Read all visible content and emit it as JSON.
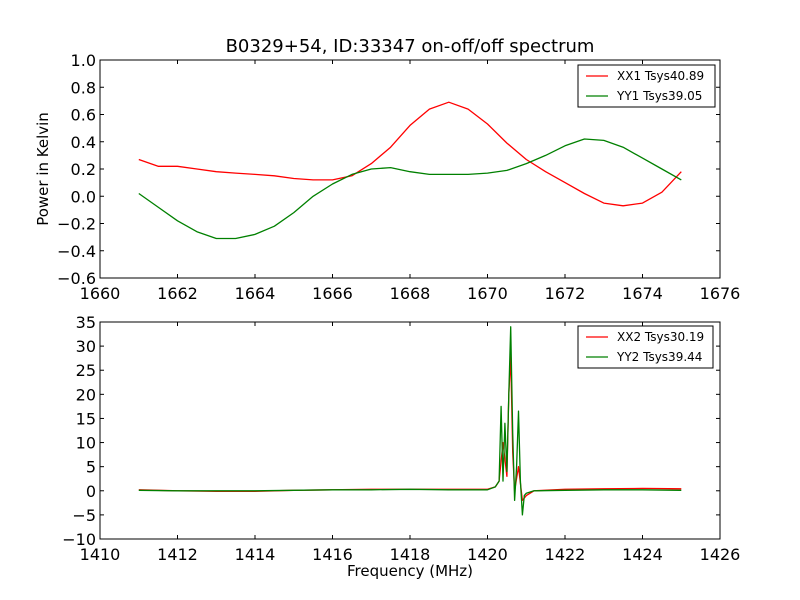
{
  "chart_data": [
    {
      "type": "line",
      "title": "B0329+54, ID:33347 on-off/off spectrum",
      "xlabel": "",
      "ylabel": "Power in Kelvin",
      "xlim": [
        1660,
        1676
      ],
      "ylim": [
        -0.6,
        1.0
      ],
      "xticks": [
        "1660",
        "1662",
        "1664",
        "1666",
        "1668",
        "1670",
        "1672",
        "1674",
        "1676"
      ],
      "yticks": [
        "−0.6",
        "−0.4",
        "−0.2",
        "0.0",
        "0.2",
        "0.4",
        "0.6",
        "0.8",
        "1.0"
      ],
      "grid": false,
      "legend_position": "top-right",
      "series": [
        {
          "name": "XX1 Tsys40.89",
          "color": "#ff0000",
          "x": [
            1661.0,
            1661.5,
            1662.0,
            1662.5,
            1663.0,
            1663.5,
            1664.0,
            1664.5,
            1665.0,
            1665.5,
            1666.0,
            1666.5,
            1667.0,
            1667.5,
            1668.0,
            1668.5,
            1669.0,
            1669.5,
            1670.0,
            1670.5,
            1671.0,
            1671.5,
            1672.0,
            1672.5,
            1673.0,
            1673.5,
            1674.0,
            1674.5,
            1675.0
          ],
          "y": [
            0.27,
            0.22,
            0.22,
            0.2,
            0.18,
            0.17,
            0.16,
            0.15,
            0.13,
            0.12,
            0.12,
            0.15,
            0.24,
            0.36,
            0.52,
            0.64,
            0.69,
            0.64,
            0.53,
            0.39,
            0.27,
            0.18,
            0.1,
            0.02,
            -0.05,
            -0.07,
            -0.05,
            0.03,
            0.18
          ]
        },
        {
          "name": "YY1 Tsys39.05",
          "color": "#008000",
          "x": [
            1661.0,
            1661.5,
            1662.0,
            1662.5,
            1663.0,
            1663.5,
            1664.0,
            1664.5,
            1665.0,
            1665.5,
            1666.0,
            1666.5,
            1667.0,
            1667.5,
            1668.0,
            1668.5,
            1669.0,
            1669.5,
            1670.0,
            1670.5,
            1671.0,
            1671.5,
            1672.0,
            1672.5,
            1673.0,
            1673.5,
            1674.0,
            1674.5,
            1675.0
          ],
          "y": [
            0.02,
            -0.08,
            -0.18,
            -0.26,
            -0.31,
            -0.31,
            -0.28,
            -0.22,
            -0.12,
            0.0,
            0.09,
            0.16,
            0.2,
            0.21,
            0.18,
            0.16,
            0.16,
            0.16,
            0.17,
            0.19,
            0.24,
            0.3,
            0.37,
            0.42,
            0.41,
            0.36,
            0.28,
            0.2,
            0.12
          ]
        }
      ]
    },
    {
      "type": "line",
      "title": "",
      "xlabel": "Frequency (MHz)",
      "ylabel": "",
      "xlim": [
        1410,
        1426
      ],
      "ylim": [
        -10,
        35
      ],
      "xticks": [
        "1410",
        "1412",
        "1414",
        "1416",
        "1418",
        "1420",
        "1422",
        "1424",
        "1426"
      ],
      "yticks": [
        "−10",
        "−5",
        "0",
        "5",
        "10",
        "15",
        "20",
        "25",
        "30",
        "35"
      ],
      "grid": false,
      "legend_position": "top-right",
      "series": [
        {
          "name": "XX2 Tsys30.19",
          "color": "#ff0000",
          "x": [
            1411.0,
            1412.0,
            1413.0,
            1414.0,
            1415.0,
            1416.0,
            1417.0,
            1418.0,
            1419.0,
            1420.0,
            1420.2,
            1420.3,
            1420.4,
            1420.5,
            1420.55,
            1420.6,
            1420.65,
            1420.7,
            1420.8,
            1420.9,
            1421.0,
            1421.2,
            1422.0,
            1423.0,
            1424.0,
            1425.0
          ],
          "y": [
            0.2,
            0.0,
            -0.1,
            -0.1,
            0.1,
            0.2,
            0.3,
            0.3,
            0.3,
            0.3,
            0.8,
            2.0,
            10.0,
            3.0,
            20.0,
            28.0,
            8.0,
            0.0,
            5.0,
            -2.0,
            -1.0,
            0.0,
            0.3,
            0.4,
            0.5,
            0.4
          ]
        },
        {
          "name": "YY2 Tsys39.44",
          "color": "#008000",
          "x": [
            1411.0,
            1412.0,
            1413.0,
            1414.0,
            1415.0,
            1416.0,
            1417.0,
            1418.0,
            1419.0,
            1420.0,
            1420.2,
            1420.3,
            1420.35,
            1420.4,
            1420.45,
            1420.5,
            1420.55,
            1420.6,
            1420.65,
            1420.7,
            1420.75,
            1420.8,
            1420.85,
            1420.9,
            1420.95,
            1421.0,
            1421.2,
            1422.0,
            1423.0,
            1424.0,
            1425.0
          ],
          "y": [
            0.1,
            0.0,
            0.0,
            0.0,
            0.1,
            0.2,
            0.2,
            0.3,
            0.2,
            0.2,
            0.8,
            2.0,
            17.5,
            2.0,
            14.0,
            4.0,
            20.0,
            34.0,
            12.0,
            -2.0,
            5.0,
            16.5,
            2.0,
            -5.0,
            -1.0,
            -0.5,
            0.0,
            0.1,
            0.2,
            0.2,
            0.1
          ]
        }
      ]
    }
  ]
}
